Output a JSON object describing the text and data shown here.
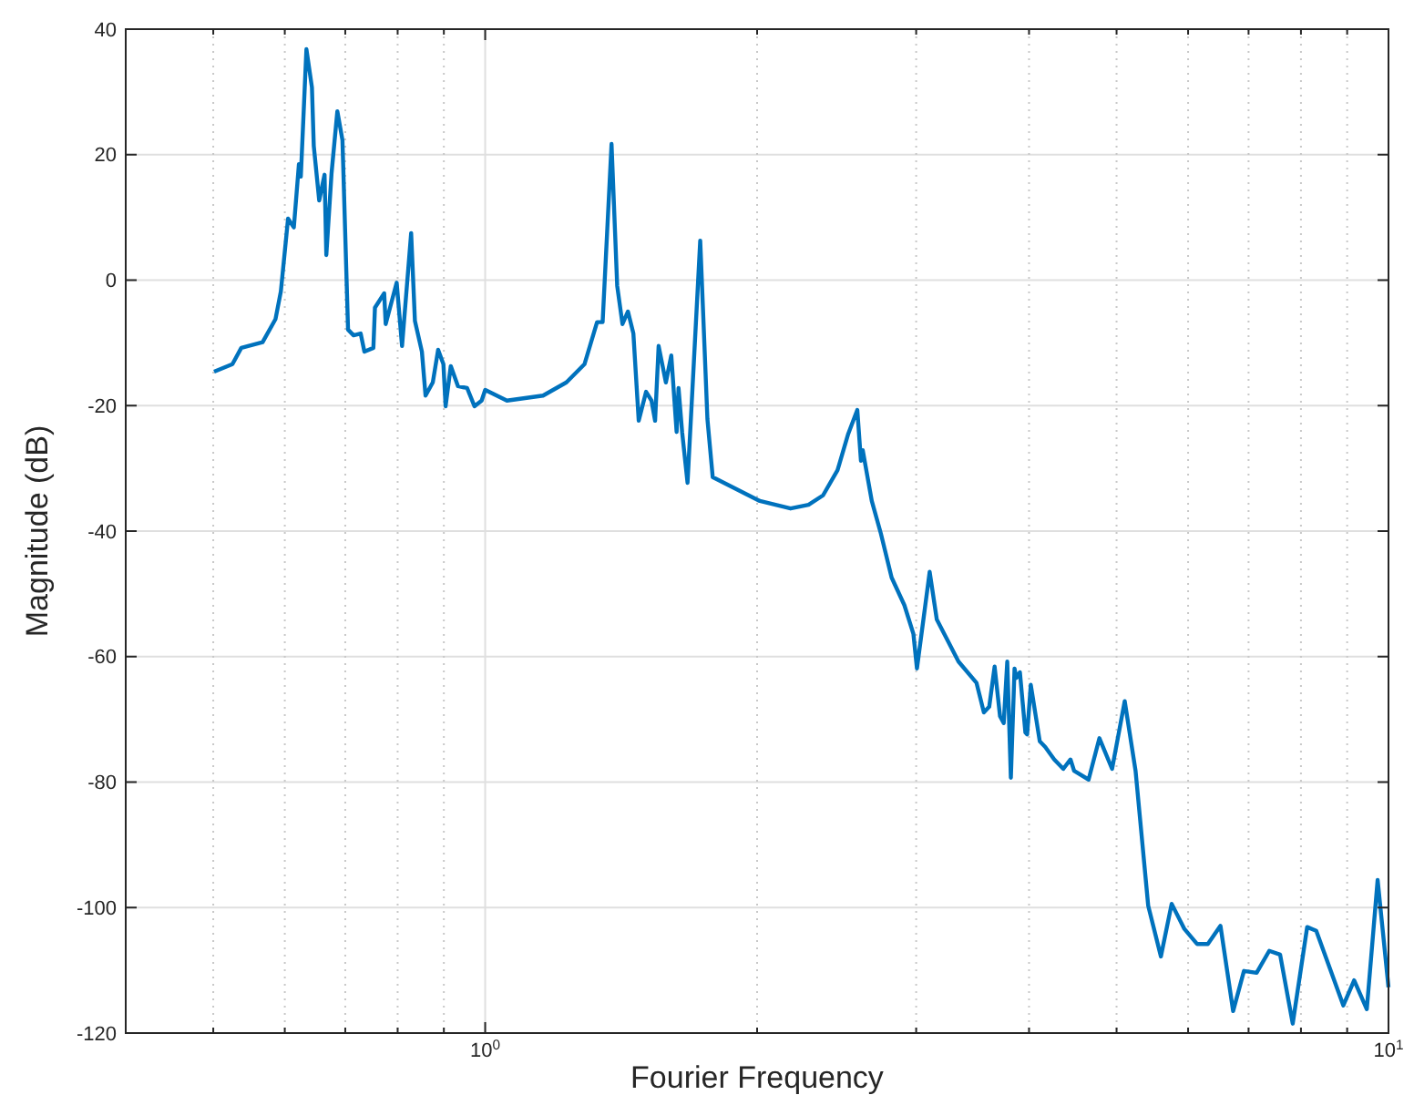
{
  "chart_data": {
    "type": "line",
    "xlabel": "Fourier Frequency",
    "ylabel": "Magnitude (dB)",
    "log": "x",
    "grid": true,
    "marker": "none",
    "line_style": "solid",
    "xlim": [
      0.4,
      10
    ],
    "ylim": [
      -120,
      40
    ],
    "xticks": [
      {
        "value": 0.4,
        "label": null
      },
      {
        "value": 0.5,
        "label": null
      },
      {
        "value": 0.6,
        "label": null
      },
      {
        "value": 0.7,
        "label": null
      },
      {
        "value": 0.8,
        "label": null
      },
      {
        "value": 0.9,
        "label": null
      },
      {
        "value": 1,
        "label": "10$^{0}$"
      },
      {
        "value": 2,
        "label": null
      },
      {
        "value": 3,
        "label": null
      },
      {
        "value": 4,
        "label": null
      },
      {
        "value": 5,
        "label": null
      },
      {
        "value": 6,
        "label": null
      },
      {
        "value": 7,
        "label": null
      },
      {
        "value": 8,
        "label": null
      },
      {
        "value": 9,
        "label": null
      },
      {
        "value": 10,
        "label": "10$^{1}$"
      }
    ],
    "yticks": [
      -120,
      -100,
      -80,
      -60,
      -40,
      -20,
      0,
      20,
      40
    ],
    "series": [
      {
        "color": "#0072bd",
        "x": [
          0.501,
          0.525,
          0.537,
          0.567,
          0.586,
          0.594,
          0.605,
          0.614,
          0.622,
          0.625,
          0.634,
          0.643,
          0.646,
          0.655,
          0.664,
          0.667,
          0.676,
          0.686,
          0.695,
          0.705,
          0.715,
          0.728,
          0.735,
          0.752,
          0.755,
          0.773,
          0.776,
          0.798,
          0.809,
          0.828,
          0.836,
          0.851,
          0.859,
          0.875,
          0.887,
          0.899,
          0.904,
          0.916,
          0.933,
          0.955,
          0.973,
          0.991,
          1.0,
          1.057,
          1.159,
          1.23,
          1.288,
          1.33,
          1.349,
          1.38,
          1.4,
          1.419,
          1.439,
          1.459,
          1.479,
          1.507,
          1.528,
          1.542,
          1.556,
          1.585,
          1.607,
          1.629,
          1.637,
          1.652,
          1.675,
          1.73,
          1.762,
          1.786,
          2.014,
          2.178,
          2.28,
          2.366,
          2.455,
          2.523,
          2.582,
          2.606,
          2.618,
          2.679,
          2.742,
          2.818,
          2.911,
          2.979,
          3.006,
          3.105,
          3.162,
          3.342,
          3.499,
          3.565,
          3.614,
          3.664,
          3.715,
          3.75,
          3.784,
          3.819,
          3.855,
          3.873,
          3.908,
          3.963,
          3.981,
          4.018,
          4.111,
          4.169,
          4.266,
          4.365,
          4.446,
          4.487,
          4.656,
          4.786,
          4.943,
          5.105,
          5.248,
          5.42,
          5.598,
          5.754,
          5.943,
          6.138,
          6.31,
          6.516,
          6.73,
          6.918,
          7.145,
          7.379,
          7.586,
          7.834,
          8.128,
          8.318,
          8.913,
          9.162,
          9.462,
          9.727,
          10.0
        ],
        "values": [
          -14.6,
          -13.4,
          -10.8,
          -9.9,
          -6.2,
          -1.8,
          9.8,
          8.4,
          18.5,
          16.5,
          36.8,
          30.7,
          21.4,
          12.7,
          16.8,
          4.0,
          17.1,
          26.9,
          22.3,
          -7.9,
          -8.8,
          -8.5,
          -11.4,
          -10.8,
          -4.4,
          -2.1,
          -7.0,
          -0.4,
          -10.5,
          7.5,
          -6.5,
          -11.4,
          -18.4,
          -16.3,
          -11.1,
          -13.4,
          -20.1,
          -13.7,
          -16.9,
          -17.2,
          -20.1,
          -19.2,
          -17.5,
          -19.2,
          -18.4,
          -16.3,
          -13.4,
          -6.7,
          -6.7,
          21.7,
          -0.9,
          -7.0,
          -5.0,
          -8.5,
          -22.4,
          -17.8,
          -19.2,
          -22.4,
          -10.5,
          -16.3,
          -12.0,
          -24.2,
          -17.2,
          -24.2,
          -32.3,
          6.3,
          -22.1,
          -31.4,
          -35.2,
          -36.4,
          -35.8,
          -34.3,
          -30.3,
          -24.5,
          -20.7,
          -28.8,
          -27.1,
          -35.2,
          -40.4,
          -47.4,
          -51.8,
          -56.4,
          -61.9,
          -46.5,
          -54.1,
          -60.8,
          -64.2,
          -68.9,
          -68.0,
          -61.6,
          -69.5,
          -70.6,
          -60.8,
          -79.3,
          -61.9,
          -63.4,
          -62.5,
          -72.1,
          -72.4,
          -64.5,
          -73.5,
          -74.4,
          -76.4,
          -77.9,
          -76.4,
          -78.2,
          -79.6,
          -73.0,
          -77.9,
          -67.1,
          -78.2,
          -99.7,
          -107.8,
          -99.4,
          -103.4,
          -105.8,
          -105.8,
          -102.9,
          -116.5,
          -110.1,
          -110.4,
          -106.9,
          -107.5,
          -118.5,
          -103.1,
          -103.7,
          -115.6,
          -111.6,
          -116.2,
          -95.6,
          -112.7
        ]
      }
    ]
  }
}
